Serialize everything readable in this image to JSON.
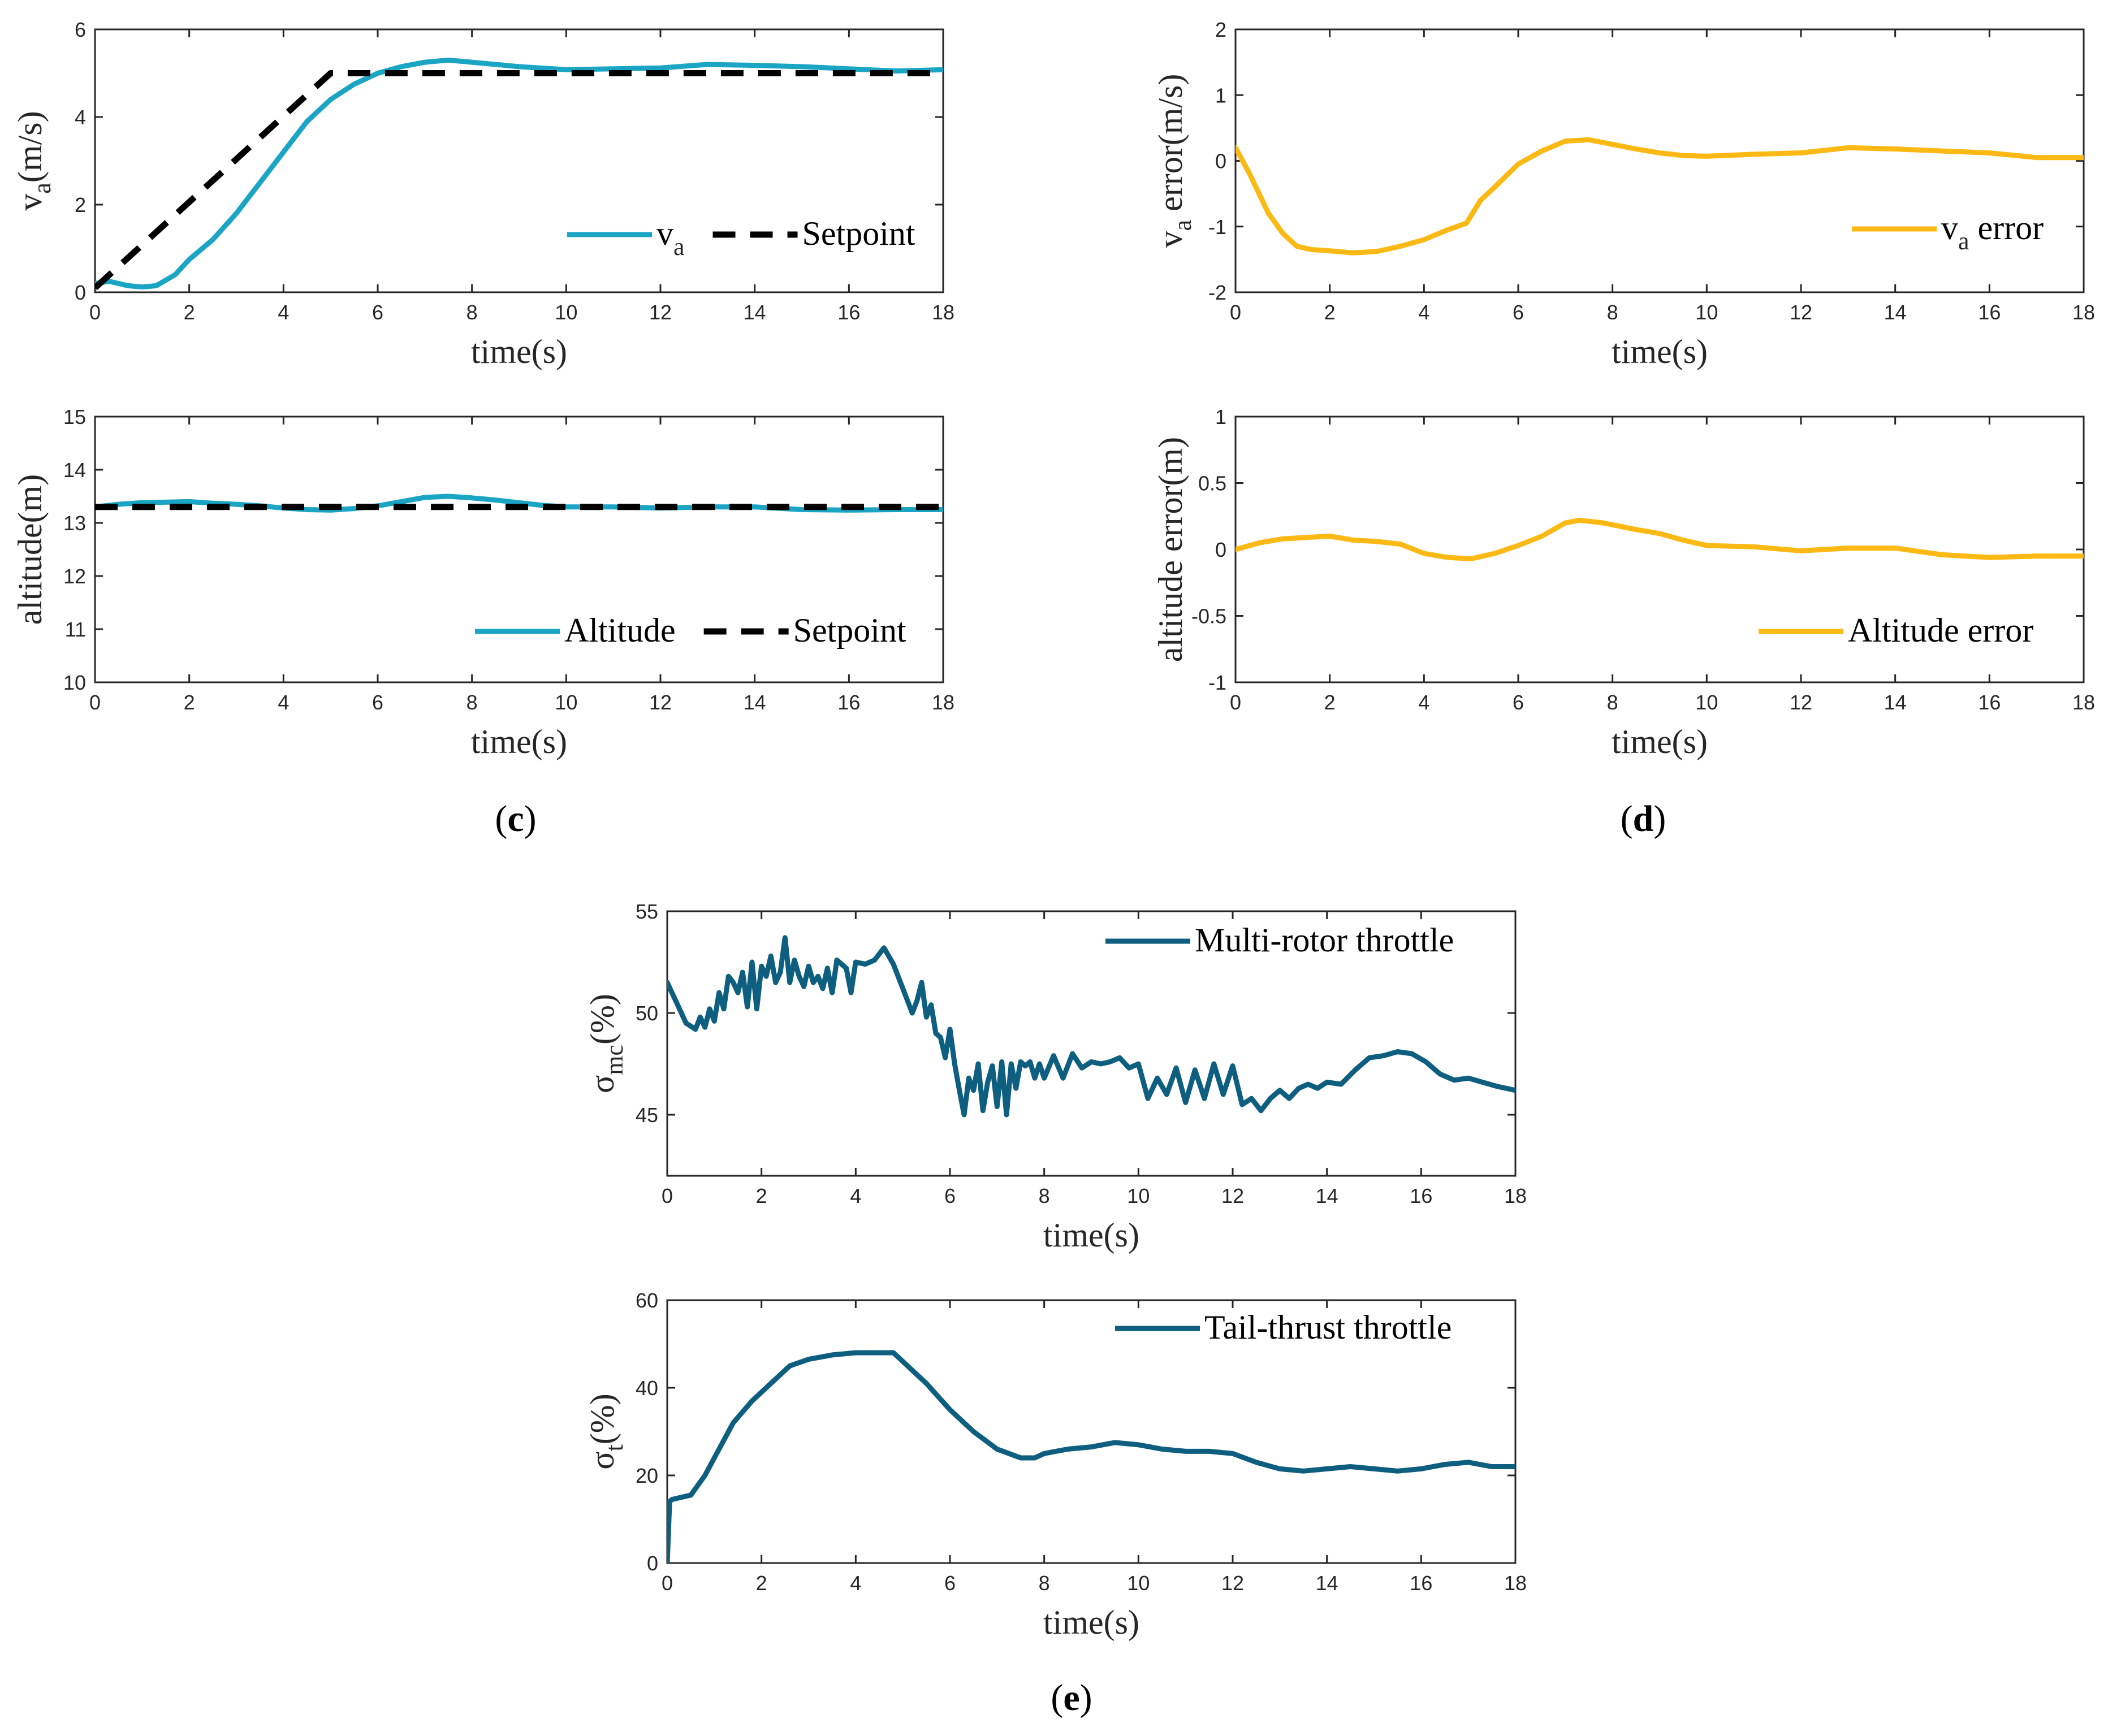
{
  "colors": {
    "cyan": "#1aa5c4",
    "amber": "#fdb913",
    "teal": "#0e5f7f",
    "setpoint": "#000000",
    "axis": "#262626"
  },
  "panel_labels": {
    "c": {
      "open": "(",
      "letter": "c",
      "close": ")"
    },
    "d": {
      "open": "(",
      "letter": "d",
      "close": ")"
    },
    "e": {
      "open": "(",
      "letter": "e",
      "close": ")"
    }
  },
  "chart_data": [
    {
      "id": "va",
      "type": "line",
      "xlabel": "time(s)",
      "ylabel": {
        "main": "v",
        "sub": "a",
        "rest": "(m/s)"
      },
      "xlim": [
        0,
        18
      ],
      "ylim": [
        0,
        6
      ],
      "xticks": [
        0,
        2,
        4,
        6,
        8,
        10,
        12,
        14,
        16,
        18
      ],
      "yticks": [
        0,
        2,
        4,
        6
      ],
      "legend_position": "bottom-right",
      "series": [
        {
          "name": "v",
          "name_sub": "a",
          "color": "#1aa5c4",
          "style": "solid",
          "x": [
            0,
            0.3,
            0.7,
            1,
            1.3,
            1.7,
            2,
            2.5,
            3,
            3.5,
            4,
            4.5,
            5,
            5.5,
            6,
            6.5,
            7,
            7.5,
            8,
            9,
            10,
            11,
            12,
            13,
            14,
            15,
            16,
            17,
            18
          ],
          "y": [
            0.2,
            0.25,
            0.15,
            0.12,
            0.15,
            0.4,
            0.75,
            1.2,
            1.8,
            2.5,
            3.2,
            3.9,
            4.4,
            4.75,
            5.0,
            5.15,
            5.25,
            5.3,
            5.25,
            5.15,
            5.08,
            5.1,
            5.12,
            5.2,
            5.18,
            5.15,
            5.1,
            5.05,
            5.08
          ]
        },
        {
          "name": "Setpoint",
          "color": "#000000",
          "style": "dashed",
          "x": [
            0,
            5,
            18
          ],
          "y": [
            0.1,
            5,
            5
          ]
        }
      ]
    },
    {
      "id": "va_err",
      "type": "line",
      "xlabel": "time(s)",
      "ylabel": {
        "main": "v",
        "sub": "a",
        "rest": " error(m/s)"
      },
      "xlim": [
        0,
        18
      ],
      "ylim": [
        -2,
        2
      ],
      "xticks": [
        0,
        2,
        4,
        6,
        8,
        10,
        12,
        14,
        16,
        18
      ],
      "yticks": [
        -2,
        -1,
        0,
        1,
        2
      ],
      "legend_position": "bottom-right",
      "series": [
        {
          "name": "v",
          "name_sub": "a",
          "name_rest": " error",
          "color": "#fdb913",
          "style": "solid",
          "x": [
            0,
            0.3,
            0.7,
            1,
            1.3,
            1.6,
            2,
            2.5,
            3,
            3.5,
            4,
            4.5,
            4.9,
            5.2,
            5.5,
            6,
            6.5,
            7,
            7.5,
            8,
            8.5,
            9,
            9.5,
            10,
            11,
            12,
            13,
            14,
            15,
            16,
            17,
            18
          ],
          "y": [
            0.2,
            -0.2,
            -0.8,
            -1.1,
            -1.3,
            -1.35,
            -1.37,
            -1.4,
            -1.38,
            -1.3,
            -1.2,
            -1.05,
            -0.95,
            -0.6,
            -0.4,
            -0.05,
            0.15,
            0.3,
            0.32,
            0.25,
            0.18,
            0.12,
            0.08,
            0.07,
            0.1,
            0.12,
            0.2,
            0.18,
            0.15,
            0.12,
            0.05,
            0.05
          ]
        }
      ]
    },
    {
      "id": "alt",
      "type": "line",
      "xlabel": "time(s)",
      "ylabel": {
        "main": "altitude(m)",
        "sub": "",
        "rest": ""
      },
      "xlim": [
        0,
        18
      ],
      "ylim": [
        10,
        15
      ],
      "xticks": [
        0,
        2,
        4,
        6,
        8,
        10,
        12,
        14,
        16,
        18
      ],
      "yticks": [
        10,
        11,
        12,
        13,
        14,
        15
      ],
      "legend_position": "bottom-right",
      "series": [
        {
          "name": "Altitude",
          "color": "#1aa5c4",
          "style": "solid",
          "x": [
            0,
            0.5,
            1,
            2,
            2.5,
            3,
            3.5,
            4,
            4.5,
            5,
            5.5,
            6,
            6.5,
            7,
            7.5,
            8,
            8.5,
            9,
            9.5,
            10,
            11,
            12,
            13,
            14,
            15,
            16,
            17,
            18
          ],
          "y": [
            13.3,
            13.35,
            13.38,
            13.4,
            13.37,
            13.35,
            13.32,
            13.28,
            13.25,
            13.24,
            13.27,
            13.32,
            13.4,
            13.48,
            13.5,
            13.47,
            13.43,
            13.38,
            13.33,
            13.3,
            13.3,
            13.28,
            13.3,
            13.3,
            13.25,
            13.24,
            13.25,
            13.25
          ]
        },
        {
          "name": "Setpoint",
          "color": "#000000",
          "style": "dashed",
          "x": [
            0,
            18
          ],
          "y": [
            13.3,
            13.3
          ]
        }
      ]
    },
    {
      "id": "alt_err",
      "type": "line",
      "xlabel": "time(s)",
      "ylabel": {
        "main": "altitude error(m)",
        "sub": "",
        "rest": ""
      },
      "xlim": [
        0,
        18
      ],
      "ylim": [
        -1,
        1
      ],
      "xticks": [
        0,
        2,
        4,
        6,
        8,
        10,
        12,
        14,
        16,
        18
      ],
      "yticks": [
        -1,
        -0.5,
        0,
        0.5,
        1
      ],
      "legend_position": "bottom-right",
      "series": [
        {
          "name": "Altitude error",
          "color": "#fdb913",
          "style": "solid",
          "x": [
            0,
            0.5,
            1,
            1.5,
            2,
            2.5,
            3,
            3.5,
            4,
            4.5,
            5,
            5.5,
            6,
            6.5,
            7,
            7.3,
            7.8,
            8.5,
            9,
            9.5,
            10,
            11,
            12,
            13,
            14,
            15,
            16,
            17,
            18
          ],
          "y": [
            0,
            0.05,
            0.08,
            0.09,
            0.1,
            0.07,
            0.06,
            0.04,
            -0.03,
            -0.06,
            -0.07,
            -0.03,
            0.03,
            0.1,
            0.2,
            0.22,
            0.2,
            0.15,
            0.12,
            0.07,
            0.03,
            0.02,
            -0.01,
            0.01,
            0.01,
            -0.04,
            -0.06,
            -0.05,
            -0.05
          ]
        }
      ]
    },
    {
      "id": "smc",
      "type": "line",
      "xlabel": "time(s)",
      "ylabel": {
        "main": "σ",
        "sub": "mc",
        "rest": "(%)"
      },
      "xlim": [
        0,
        18
      ],
      "ylim": [
        42,
        55
      ],
      "xticks": [
        0,
        2,
        4,
        6,
        8,
        10,
        12,
        14,
        16,
        18
      ],
      "yticks": [
        45,
        50,
        55
      ],
      "legend_position": "top-right",
      "series": [
        {
          "name": "Multi-rotor throttle",
          "color": "#0e5f7f",
          "style": "solid",
          "x": [
            0,
            0.2,
            0.4,
            0.6,
            0.7,
            0.8,
            0.9,
            1.0,
            1.1,
            1.2,
            1.3,
            1.4,
            1.5,
            1.6,
            1.7,
            1.8,
            1.9,
            2.0,
            2.1,
            2.2,
            2.3,
            2.4,
            2.5,
            2.6,
            2.7,
            2.8,
            2.9,
            3.0,
            3.1,
            3.2,
            3.3,
            3.4,
            3.5,
            3.6,
            3.7,
            3.8,
            3.9,
            4.0,
            4.2,
            4.4,
            4.6,
            4.8,
            5.0,
            5.2,
            5.3,
            5.4,
            5.5,
            5.6,
            5.7,
            5.8,
            5.9,
            6.0,
            6.1,
            6.2,
            6.3,
            6.4,
            6.5,
            6.6,
            6.7,
            6.8,
            6.9,
            7.0,
            7.1,
            7.2,
            7.3,
            7.4,
            7.5,
            7.6,
            7.7,
            7.8,
            7.9,
            8.0,
            8.2,
            8.4,
            8.6,
            8.8,
            9.0,
            9.2,
            9.4,
            9.6,
            9.8,
            10.0,
            10.2,
            10.4,
            10.6,
            10.8,
            11.0,
            11.2,
            11.4,
            11.6,
            11.8,
            12.0,
            12.2,
            12.4,
            12.6,
            12.8,
            13.0,
            13.2,
            13.4,
            13.6,
            13.8,
            14.0,
            14.3,
            14.6,
            14.9,
            15.2,
            15.5,
            15.8,
            16.1,
            16.4,
            16.7,
            17.0,
            17.3,
            17.6,
            18
          ],
          "y": [
            51.5,
            50.5,
            49.5,
            49.2,
            49.8,
            49.3,
            50.2,
            49.6,
            51,
            50.2,
            51.8,
            51.5,
            51,
            52,
            50.3,
            52.5,
            50.2,
            52.3,
            51.8,
            52.8,
            51.5,
            52,
            53.7,
            51.5,
            52.6,
            51.8,
            51.3,
            52.3,
            51.5,
            51.8,
            51.2,
            52.2,
            51,
            52.6,
            52.4,
            52.2,
            51,
            52.5,
            52.4,
            52.6,
            53.2,
            52.4,
            51.2,
            50,
            50.6,
            51.5,
            49.8,
            50.4,
            49,
            48.8,
            47.8,
            49.2,
            47.5,
            46.2,
            45,
            46.8,
            46.2,
            47.5,
            45.2,
            46.6,
            47.4,
            45.4,
            47.6,
            45,
            47.5,
            46.3,
            47.6,
            47.4,
            47.6,
            46.8,
            47.5,
            46.8,
            47.9,
            46.8,
            48,
            47.3,
            47.6,
            47.5,
            47.6,
            47.8,
            47.3,
            47.5,
            45.8,
            46.8,
            46,
            47.3,
            45.6,
            47.2,
            45.8,
            47.5,
            46,
            47.4,
            45.5,
            45.8,
            45.2,
            45.8,
            46.2,
            45.8,
            46.3,
            46.5,
            46.3,
            46.6,
            46.5,
            47.2,
            47.8,
            47.9,
            48.1,
            48.0,
            47.6,
            47.0,
            46.7,
            46.8,
            46.6,
            46.4,
            46.2
          ]
        }
      ]
    },
    {
      "id": "st",
      "type": "line",
      "xlabel": "time(s)",
      "ylabel": {
        "main": "σ",
        "sub": "t",
        "rest": "(%)"
      },
      "xlim": [
        0,
        18
      ],
      "ylim": [
        0,
        60
      ],
      "xticks": [
        0,
        2,
        4,
        6,
        8,
        10,
        12,
        14,
        16,
        18
      ],
      "yticks": [
        0,
        20,
        40,
        60
      ],
      "legend_position": "top-right",
      "series": [
        {
          "name": "Tail-thrust throttle",
          "color": "#0e5f7f",
          "style": "solid",
          "x": [
            0,
            0.05,
            0.1,
            0.5,
            0.8,
            1.0,
            1.4,
            1.8,
            2.2,
            2.6,
            3.0,
            3.5,
            4.0,
            4.5,
            4.8,
            5.0,
            5.5,
            6.0,
            6.5,
            7.0,
            7.5,
            7.8,
            8.0,
            8.5,
            9.0,
            9.5,
            10.0,
            10.5,
            11.0,
            11.5,
            12.0,
            12.5,
            13.0,
            13.5,
            14.0,
            14.5,
            15.0,
            15.5,
            16.0,
            16.5,
            17.0,
            17.5,
            18.0
          ],
          "y": [
            0,
            14,
            14.5,
            15.5,
            20,
            24,
            32,
            37,
            41,
            45,
            46.5,
            47.5,
            48,
            48,
            48,
            46,
            41,
            35,
            30,
            26,
            24,
            24,
            25,
            26,
            26.5,
            27.5,
            27,
            26,
            25.5,
            25.5,
            25,
            23,
            21.5,
            21,
            21.5,
            22,
            21.5,
            21,
            21.5,
            22.5,
            23,
            22,
            22
          ]
        }
      ]
    }
  ]
}
